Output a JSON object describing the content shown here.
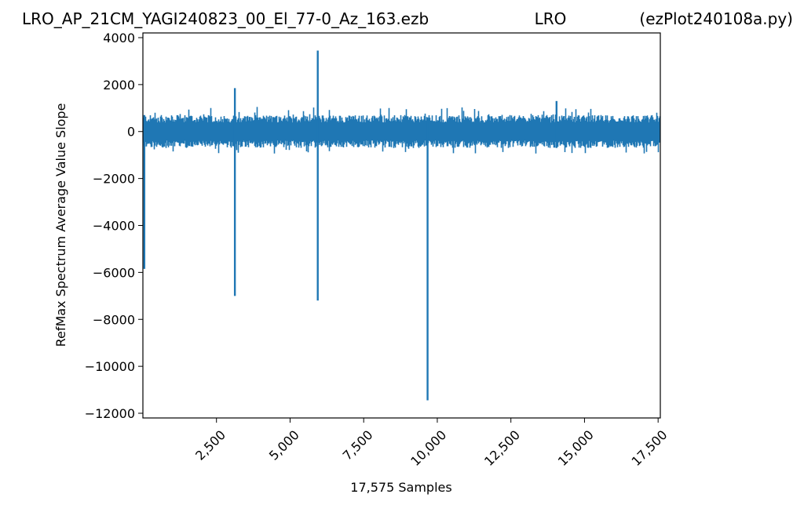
{
  "header": {
    "left": "LRO_AP_21CM_YAGI240823_00_El_77-0_Az_163.ezb",
    "center": "LRO",
    "right": "(ezPlot240108a.py)"
  },
  "chart_data": {
    "type": "line",
    "title": "",
    "xlabel": "17,575 Samples",
    "ylabel": "RefMax Spectrum Average Value Slope",
    "xlim": [
      1,
      17575
    ],
    "ylim": [
      -12200,
      4200
    ],
    "x_ticks": [
      2500,
      5000,
      7500,
      10000,
      12500,
      15000,
      17500
    ],
    "x_tick_labels": [
      "2,500",
      "5,000",
      "7,500",
      "10,000",
      "12,500",
      "15,000",
      "17,500"
    ],
    "y_ticks": [
      4000,
      2000,
      0,
      -2000,
      -4000,
      -6000,
      -8000,
      -10000,
      -12000
    ],
    "y_tick_labels": [
      "4000",
      "2000",
      "0",
      "−2000",
      "−4000",
      "−6000",
      "−8000",
      "−10000",
      "−12000"
    ],
    "grid": false,
    "legend": "none",
    "series": [
      {
        "color": "#1f77b4",
        "noise_band": {
          "typical_min": -700,
          "typical_max": 700,
          "extreme_min": -1100,
          "extreme_max": 1300
        },
        "spikes": [
          {
            "x": 3125,
            "max": 1850,
            "min": -7000
          },
          {
            "x": 5940,
            "max": 3450,
            "min": -7200
          },
          {
            "x": 9670,
            "max": 600,
            "min": -11450
          },
          {
            "x": 14050,
            "max": 1300,
            "min": -700
          },
          {
            "x": 50,
            "max": 700,
            "min": -5850
          }
        ]
      }
    ]
  }
}
